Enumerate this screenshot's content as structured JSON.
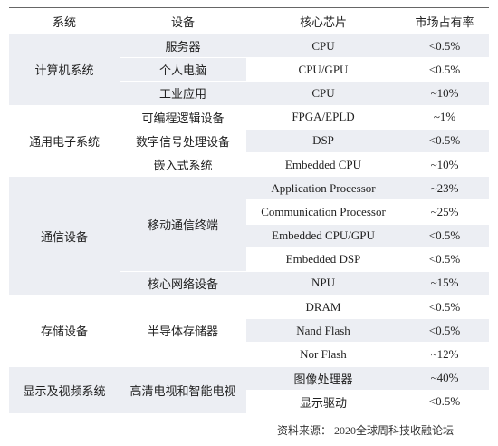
{
  "header": [
    "系统",
    "设备",
    "核心芯片",
    "市场占有率"
  ],
  "groups": [
    {
      "system": "计算机系统",
      "devices": [
        {
          "name": "服务器",
          "chips": [
            {
              "chip": "CPU",
              "share": "<0.5%"
            }
          ]
        },
        {
          "name": "个人电脑",
          "chips": [
            {
              "chip": "CPU/GPU",
              "share": "<0.5%"
            }
          ]
        },
        {
          "name": "工业应用",
          "chips": [
            {
              "chip": "CPU",
              "share": "~10%"
            }
          ]
        }
      ]
    },
    {
      "system": "通用电子系统",
      "devices": [
        {
          "name": "可编程逻辑设备",
          "chips": [
            {
              "chip": "FPGA/EPLD",
              "share": "~1%"
            }
          ]
        },
        {
          "name": "数字信号处理设备",
          "chips": [
            {
              "chip": "DSP",
              "share": "<0.5%"
            }
          ]
        },
        {
          "name": "嵌入式系统",
          "chips": [
            {
              "chip": "Embedded CPU",
              "share": "~10%"
            }
          ]
        }
      ]
    },
    {
      "system": "通信设备",
      "devices": [
        {
          "name": "移动通信终端",
          "chips": [
            {
              "chip": "Application Processor",
              "share": "~23%"
            },
            {
              "chip": "Communication Processor",
              "share": "~25%"
            },
            {
              "chip": "Embedded CPU/GPU",
              "share": "<0.5%"
            },
            {
              "chip": "Embedded DSP",
              "share": "<0.5%"
            }
          ]
        },
        {
          "name": "核心网络设备",
          "chips": [
            {
              "chip": "NPU",
              "share": "~15%"
            }
          ]
        }
      ]
    },
    {
      "system": "存储设备",
      "devices": [
        {
          "name": "半导体存储器",
          "chips": [
            {
              "chip": "DRAM",
              "share": "<0.5%"
            },
            {
              "chip": "Nand Flash",
              "share": "<0.5%"
            },
            {
              "chip": "Nor Flash",
              "share": "~12%"
            }
          ]
        }
      ]
    },
    {
      "system": "显示及视频系统",
      "devices": [
        {
          "name": "高清电视和智能电视",
          "chips": [
            {
              "chip": "图像处理器",
              "share": "~40%"
            },
            {
              "chip": "显示驱动",
              "share": "<0.5%"
            }
          ]
        }
      ]
    }
  ],
  "source": "资料来源： 2020全球周科技收融论坛"
}
